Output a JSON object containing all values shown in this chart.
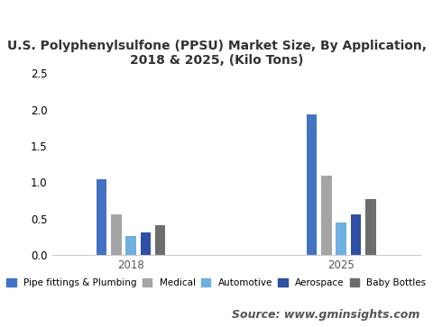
{
  "title": "U.S. Polyphenylsulfone (PPSU) Market Size, By Application,\n2018 & 2025, (Kilo Tons)",
  "groups": [
    "2018",
    "2025"
  ],
  "categories": [
    "Pipe fittings & Plumbing",
    "Medical",
    "Automotive",
    "Aerospace",
    "Baby Bottles"
  ],
  "values": {
    "2018": [
      1.04,
      0.56,
      0.26,
      0.31,
      0.41
    ],
    "2025": [
      1.94,
      1.09,
      0.45,
      0.56,
      0.77
    ]
  },
  "colors": {
    "Pipe fittings & Plumbing": "#4472C4",
    "Medical": "#A5A5A5",
    "Automotive": "#70B0E0",
    "Aerospace": "#2E4FA3",
    "Baby Bottles": "#6D6D6D"
  },
  "ylim": [
    0,
    2.7
  ],
  "yticks": [
    0.0,
    0.5,
    1.0,
    1.5,
    2.0,
    2.5
  ],
  "source_text": "Source: www.gminsights.com",
  "background_color": "#ffffff",
  "plot_bg_color": "#ffffff",
  "footer_bg_color": "#e8e8e8",
  "title_fontsize": 10,
  "legend_fontsize": 7.5,
  "tick_fontsize": 8.5,
  "source_fontsize": 9
}
